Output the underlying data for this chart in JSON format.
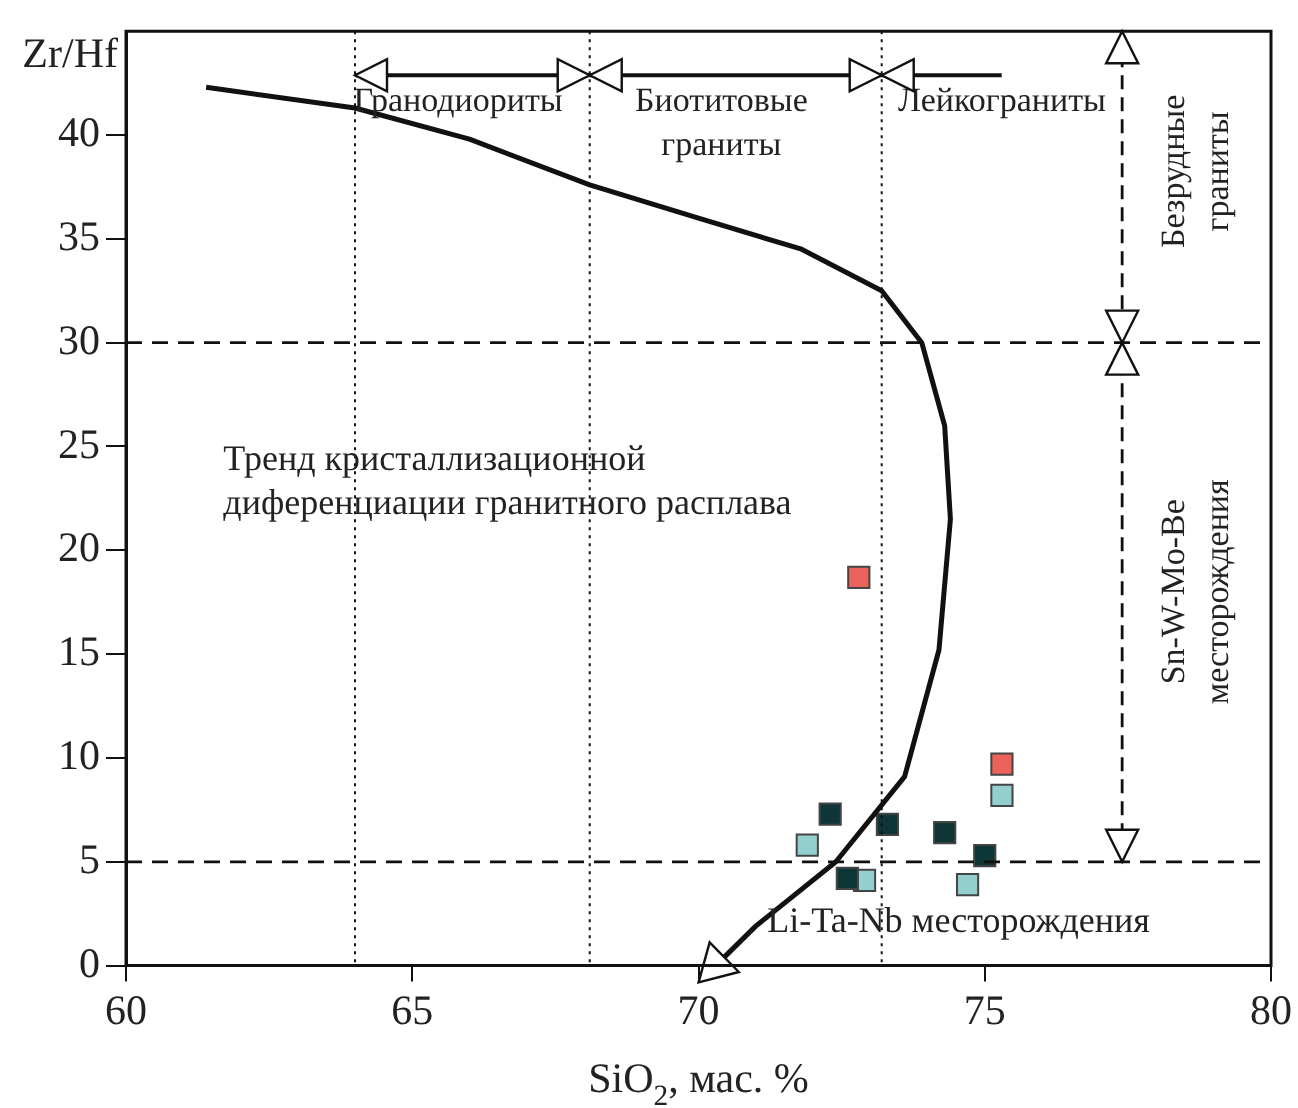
{
  "chart_data": {
    "type": "scatter",
    "xlabel": "SiO$_{2}$, мас. %",
    "ylabel": "Zr/Hf",
    "xlim": [
      60,
      80
    ],
    "xticks": [
      60,
      65,
      70,
      75,
      80
    ],
    "ylim": [
      0,
      45
    ],
    "yticks": [
      0,
      5,
      10,
      15,
      20,
      25,
      30,
      35,
      40
    ],
    "grid": false,
    "legend": false,
    "marker": "square",
    "series": [
      {
        "type": "line",
        "color": "#111111",
        "marker": "none",
        "x": [
          61.4,
          64.0,
          66.0,
          68.1,
          70.0,
          71.8,
          73.2,
          73.9,
          74.3,
          74.4,
          74.2,
          73.6,
          72.4,
          71.0,
          70.3
        ],
        "values": [
          42.3,
          41.3,
          39.8,
          37.6,
          36.0,
          34.5,
          32.5,
          30.0,
          26.0,
          21.5,
          15.2,
          9.1,
          5.0,
          1.9,
          0
        ]
      },
      {
        "color": "#0f3636",
        "x": [
          72.3,
          73.3,
          74.3,
          75.0,
          72.6
        ],
        "values": [
          7.3,
          6.8,
          6.4,
          5.3,
          4.2
        ]
      },
      {
        "color": "#93cfcf",
        "x": [
          75.3,
          71.9,
          72.9,
          74.7
        ],
        "values": [
          8.2,
          5.8,
          4.1,
          3.9
        ]
      },
      {
        "color": "#eb625a",
        "x": [
          72.8,
          75.3
        ],
        "values": [
          18.7,
          9.7
        ]
      }
    ],
    "ref_lines": [
      {
        "axis": "y",
        "value": 30,
        "line_style": "dashed"
      },
      {
        "axis": "y",
        "value": 5,
        "line_style": "dashed"
      },
      {
        "axis": "x",
        "value": 64,
        "line_style": "dotted"
      },
      {
        "axis": "x",
        "value": 68.1,
        "line_style": "dotted"
      },
      {
        "axis": "x",
        "value": 73.2,
        "line_style": "dotted"
      }
    ],
    "annotations": [
      "Гранодиориты",
      "Биотитовые\nграниты",
      "Лейкограниты",
      "Безрудные\nграниты",
      "Sn-W-Mo-Be\nместорождения",
      "Тренд кристаллизационной\nдиференциации гранитного расплава",
      "Li-Ta-Nb месторождения"
    ]
  }
}
